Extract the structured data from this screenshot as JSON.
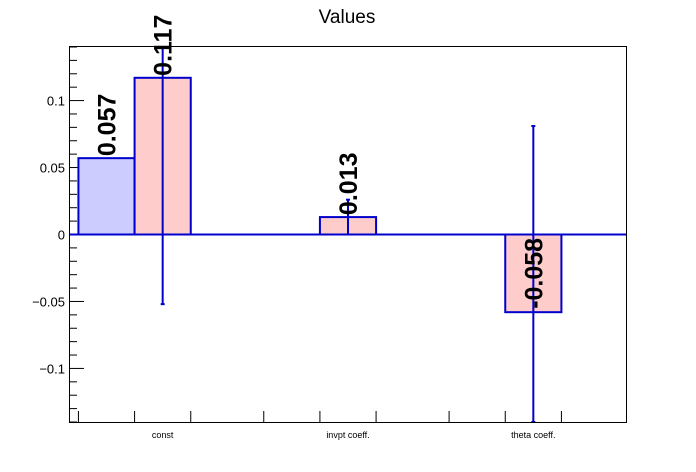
{
  "chart_data": {
    "type": "bar",
    "title": "Values",
    "categories": [
      "const",
      "invpt coeff.",
      "theta coeff."
    ],
    "ylim": [
      -0.14,
      0.14
    ],
    "yticks": [
      -0.1,
      -0.05,
      0,
      0.05,
      0.1
    ],
    "ytick_labels": [
      "−0.1",
      "−0.05",
      "0",
      "0.05",
      "0.1"
    ],
    "grid": false,
    "series": [
      {
        "color_fill": "#ccccff",
        "color_line": "#0000cc",
        "values": [
          0.057,
          null,
          null
        ],
        "labels": [
          "0.057",
          null,
          null
        ],
        "errors": [
          null,
          null,
          null
        ]
      },
      {
        "color_fill": "#ffcccc",
        "color_line": "#0000cc",
        "values": [
          0.117,
          0.013,
          -0.058
        ],
        "labels": [
          "0.117",
          "0.013",
          "-0.058"
        ],
        "errors": [
          [
            -0.052,
            0.14
          ],
          [
            0.0,
            0.026
          ],
          [
            -0.14,
            0.081
          ]
        ]
      }
    ]
  }
}
